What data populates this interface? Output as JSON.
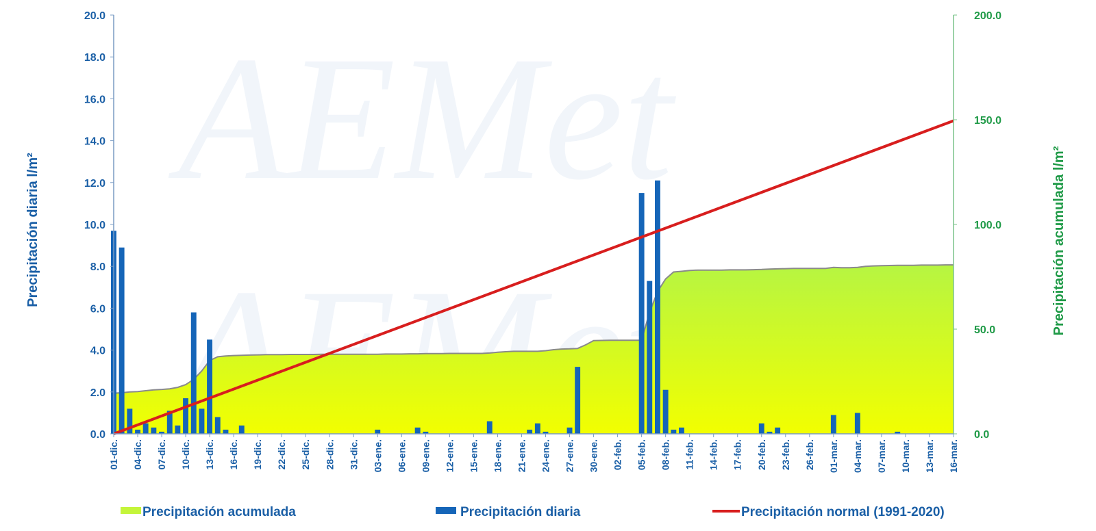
{
  "chart_data": {
    "type": "bar",
    "x": [
      "01-dic.",
      "02-dic.",
      "03-dic.",
      "04-dic.",
      "05-dic.",
      "06-dic.",
      "07-dic.",
      "08-dic.",
      "09-dic.",
      "10-dic.",
      "11-dic.",
      "12-dic.",
      "13-dic.",
      "14-dic.",
      "15-dic.",
      "16-dic.",
      "17-dic.",
      "18-dic.",
      "19-dic.",
      "20-dic.",
      "21-dic.",
      "22-dic.",
      "23-dic.",
      "24-dic.",
      "25-dic.",
      "26-dic.",
      "27-dic.",
      "28-dic.",
      "29-dic.",
      "30-dic.",
      "31-dic.",
      "01-ene.",
      "02-ene.",
      "03-ene.",
      "04-ene.",
      "05-ene.",
      "06-ene.",
      "07-ene.",
      "08-ene.",
      "09-ene.",
      "10-ene.",
      "11-ene.",
      "12-ene.",
      "13-ene.",
      "14-ene.",
      "15-ene.",
      "16-ene.",
      "17-ene.",
      "18-ene.",
      "19-ene.",
      "20-ene.",
      "21-ene.",
      "22-ene.",
      "23-ene.",
      "24-ene.",
      "25-ene.",
      "26-ene.",
      "27-ene.",
      "28-ene.",
      "29-ene.",
      "30-ene.",
      "31-ene.",
      "01-feb.",
      "02-feb.",
      "03-feb.",
      "04-feb.",
      "05-feb.",
      "06-feb.",
      "07-feb.",
      "08-feb.",
      "09-feb.",
      "10-feb.",
      "11-feb.",
      "12-feb.",
      "13-feb.",
      "14-feb.",
      "15-feb.",
      "16-feb.",
      "17-feb.",
      "18-feb.",
      "19-feb.",
      "20-feb.",
      "21-feb.",
      "22-feb.",
      "23-feb.",
      "24-feb.",
      "25-feb.",
      "26-feb.",
      "27-feb.",
      "28-feb.",
      "01-mar.",
      "02-mar.",
      "03-mar.",
      "04-mar.",
      "05-mar.",
      "06-mar.",
      "07-mar.",
      "08-mar.",
      "09-mar.",
      "10-mar.",
      "11-mar.",
      "12-mar.",
      "13-mar.",
      "14-mar.",
      "15-mar.",
      "16-mar."
    ],
    "xtick_labels": [
      "01-dic.",
      "04-dic.",
      "07-dic.",
      "10-dic.",
      "13-dic.",
      "16-dic.",
      "19-dic.",
      "22-dic.",
      "25-dic.",
      "28-dic.",
      "31-dic.",
      "03-ene.",
      "06-ene.",
      "09-ene.",
      "12-ene.",
      "15-ene.",
      "18-ene.",
      "21-ene.",
      "24-ene.",
      "27-ene.",
      "30-ene.",
      "02-feb.",
      "05-feb.",
      "08-feb.",
      "11-feb.",
      "14-feb.",
      "17-feb.",
      "20-feb.",
      "23-feb.",
      "26-feb.",
      "01-mar.",
      "04-mar.",
      "07-mar.",
      "10-mar.",
      "13-mar.",
      "16-mar."
    ],
    "series": [
      {
        "name": "Precipitación acumulada",
        "type": "area",
        "axis": "right",
        "color": "#c4f53a",
        "values": [
          19.4,
          19.6,
          20.0,
          20.2,
          20.6,
          21.0,
          21.2,
          21.5,
          22.2,
          23.5,
          26.0,
          30.0,
          35.0,
          36.8,
          37.2,
          37.4,
          37.5,
          37.6,
          37.7,
          37.8,
          37.8,
          37.8,
          37.9,
          37.9,
          37.9,
          37.9,
          38.0,
          38.0,
          38.0,
          38.0,
          38.0,
          38.0,
          38.0,
          38.0,
          38.1,
          38.1,
          38.1,
          38.2,
          38.2,
          38.3,
          38.3,
          38.3,
          38.4,
          38.4,
          38.4,
          38.4,
          38.4,
          38.6,
          39.0,
          39.2,
          39.4,
          39.4,
          39.4,
          39.4,
          39.7,
          40.2,
          40.5,
          40.6,
          40.8,
          42.5,
          44.5,
          44.6,
          44.7,
          44.7,
          44.7,
          44.7,
          44.7,
          58.0,
          68.0,
          74.0,
          77.3,
          77.6,
          78.0,
          78.2,
          78.2,
          78.2,
          78.2,
          78.3,
          78.3,
          78.3,
          78.4,
          78.5,
          78.7,
          78.8,
          78.9,
          79.0,
          79.0,
          79.0,
          79.0,
          79.0,
          79.5,
          79.3,
          79.3,
          79.5,
          80.0,
          80.2,
          80.3,
          80.4,
          80.5,
          80.5,
          80.5,
          80.6,
          80.6,
          80.6,
          80.7,
          80.7
        ]
      },
      {
        "name": "Precipitación diaria",
        "type": "bar",
        "axis": "left",
        "color": "#1565b8",
        "values": [
          9.7,
          8.9,
          1.2,
          0.2,
          0.5,
          0.3,
          0.1,
          1.1,
          0.4,
          1.7,
          5.8,
          1.2,
          4.5,
          0.8,
          0.2,
          0.0,
          0.4,
          0,
          0,
          0,
          0,
          0,
          0,
          0,
          0,
          0,
          0,
          0,
          0,
          0,
          0,
          0,
          0,
          0.2,
          0,
          0,
          0,
          0,
          0.3,
          0.1,
          0,
          0,
          0,
          0,
          0,
          0,
          0,
          0.6,
          0,
          0,
          0,
          0,
          0.2,
          0.5,
          0.1,
          0,
          0,
          0.3,
          3.2,
          0,
          0,
          0,
          0,
          0,
          0,
          0,
          11.5,
          7.3,
          12.1,
          2.1,
          0.2,
          0.3,
          0,
          0,
          0,
          0,
          0,
          0,
          0,
          0,
          0,
          0.5,
          0.1,
          0.3,
          0,
          0,
          0,
          0,
          0,
          0,
          0.9,
          0,
          0,
          1.0,
          0,
          0,
          0,
          0,
          0.1,
          0,
          0,
          0,
          0,
          0,
          0,
          0
        ]
      },
      {
        "name": "Precipitación normal (1991-2020)",
        "type": "line",
        "axis": "right",
        "color": "#d81e1e",
        "values_linear_from_to": [
          0.0,
          149.5
        ]
      }
    ],
    "ylabel": "Precipitación diaria l/m²",
    "y2label": "Precipitación acumulada l/m²",
    "ylim": [
      0,
      20
    ],
    "y2lim": [
      0,
      200
    ],
    "yticks": [
      "0.0",
      "2.0",
      "4.0",
      "6.0",
      "8.0",
      "10.0",
      "12.0",
      "14.0",
      "16.0",
      "18.0",
      "20.0"
    ],
    "y2ticks": [
      "0.0",
      "50.0",
      "100.0",
      "150.0",
      "200.0"
    ],
    "legend_position": "bottom",
    "grid": false
  },
  "legend": {
    "acumulada": "Precipitación acumulada",
    "diaria": "Precipitación diaria",
    "normal": "Precipitación normal (1991-2020)"
  }
}
